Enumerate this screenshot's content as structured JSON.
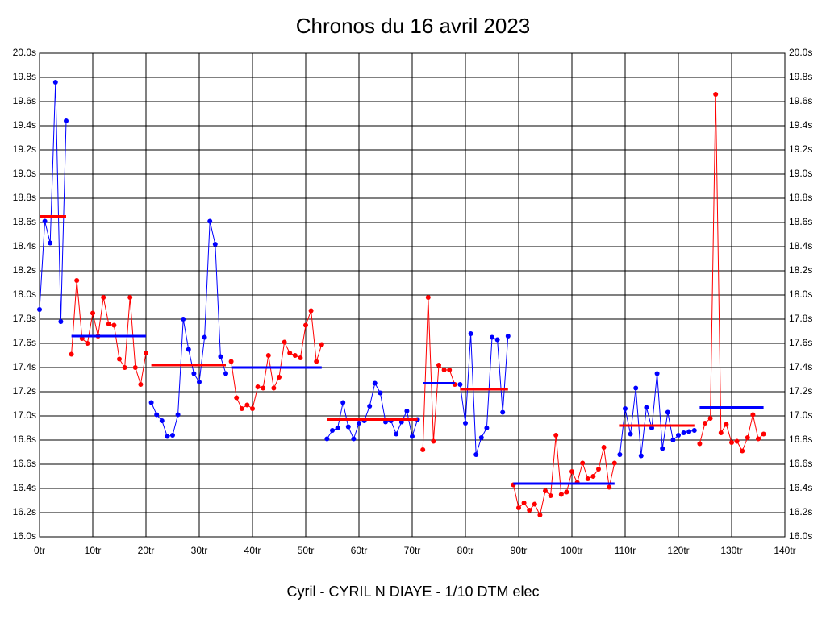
{
  "chart_data": {
    "type": "line",
    "title": "Chronos du 16 avril 2023",
    "subtitle": "Cyril - CYRIL N DIAYE - 1/10 DTM elec",
    "xlim": [
      0,
      140
    ],
    "ylim": [
      16,
      20
    ],
    "grid": true,
    "xticks": [
      {
        "value": 0,
        "label": "0tr"
      },
      {
        "value": 10,
        "label": "10tr"
      },
      {
        "value": 20,
        "label": "20tr"
      },
      {
        "value": 30,
        "label": "30tr"
      },
      {
        "value": 40,
        "label": "40tr"
      },
      {
        "value": 50,
        "label": "50tr"
      },
      {
        "value": 60,
        "label": "60tr"
      },
      {
        "value": 70,
        "label": "70tr"
      },
      {
        "value": 80,
        "label": "80tr"
      },
      {
        "value": 90,
        "label": "90tr"
      },
      {
        "value": 100,
        "label": "100tr"
      },
      {
        "value": 110,
        "label": "110tr"
      },
      {
        "value": 120,
        "label": "120tr"
      },
      {
        "value": 130,
        "label": "130tr"
      },
      {
        "value": 140,
        "label": "140tr"
      }
    ],
    "yticks": [
      {
        "value": 16.0,
        "label": "16.0s"
      },
      {
        "value": 16.2,
        "label": "16.2s"
      },
      {
        "value": 16.4,
        "label": "16.4s"
      },
      {
        "value": 16.6,
        "label": "16.6s"
      },
      {
        "value": 16.8,
        "label": "16.8s"
      },
      {
        "value": 17.0,
        "label": "17.0s"
      },
      {
        "value": 17.2,
        "label": "17.2s"
      },
      {
        "value": 17.4,
        "label": "17.4s"
      },
      {
        "value": 17.6,
        "label": "17.6s"
      },
      {
        "value": 17.8,
        "label": "17.8s"
      },
      {
        "value": 18.0,
        "label": "18.0s"
      },
      {
        "value": 18.2,
        "label": "18.2s"
      },
      {
        "value": 18.4,
        "label": "18.4s"
      },
      {
        "value": 18.6,
        "label": "18.6s"
      },
      {
        "value": 18.8,
        "label": "18.8s"
      },
      {
        "value": 19.0,
        "label": "19.0s"
      },
      {
        "value": 19.2,
        "label": "19.2s"
      },
      {
        "value": 19.4,
        "label": "19.4s"
      },
      {
        "value": 19.6,
        "label": "19.6s"
      },
      {
        "value": 19.8,
        "label": "19.8s"
      },
      {
        "value": 20.0,
        "label": "20.0s"
      }
    ],
    "series": [
      {
        "color": "#0000ff",
        "mean_color": "#ff0000",
        "mean": 18.65,
        "x": [
          0,
          1,
          2,
          3,
          4,
          5
        ],
        "values": [
          17.88,
          18.61,
          18.43,
          19.76,
          17.78,
          19.44
        ]
      },
      {
        "color": "#ff0000",
        "mean_color": "#0000ff",
        "mean": 17.66,
        "x": [
          6,
          7,
          8,
          9,
          10,
          11,
          12,
          13,
          14,
          15,
          16,
          17,
          18,
          19,
          20
        ],
        "values": [
          17.51,
          18.12,
          17.64,
          17.6,
          17.85,
          17.66,
          17.98,
          17.76,
          17.75,
          17.47,
          17.4,
          17.98,
          17.4,
          17.26,
          17.52
        ]
      },
      {
        "color": "#0000ff",
        "mean_color": "#ff0000",
        "mean": 17.42,
        "x": [
          21,
          22,
          23,
          24,
          25,
          26,
          27,
          28,
          29,
          30,
          31,
          32,
          33,
          34,
          35
        ],
        "values": [
          17.11,
          17.01,
          16.96,
          16.83,
          16.84,
          17.01,
          17.8,
          17.55,
          17.35,
          17.28,
          17.65,
          18.61,
          18.42,
          17.49,
          17.35
        ]
      },
      {
        "color": "#ff0000",
        "mean_color": "#0000ff",
        "mean": 17.4,
        "x": [
          36,
          37,
          38,
          39,
          40,
          41,
          42,
          43,
          44,
          45,
          46,
          47,
          48,
          49,
          50,
          51,
          52,
          53
        ],
        "values": [
          17.45,
          17.15,
          17.06,
          17.09,
          17.06,
          17.24,
          17.23,
          17.5,
          17.23,
          17.32,
          17.61,
          17.52,
          17.5,
          17.48,
          17.75,
          17.87,
          17.45,
          17.59
        ]
      },
      {
        "color": "#0000ff",
        "mean_color": "#ff0000",
        "mean": 16.97,
        "x": [
          54,
          55,
          56,
          57,
          58,
          59,
          60,
          61,
          62,
          63,
          64,
          65,
          66,
          67,
          68,
          69,
          70,
          71
        ],
        "values": [
          16.81,
          16.88,
          16.9,
          17.11,
          16.91,
          16.81,
          16.94,
          16.96,
          17.08,
          17.27,
          17.19,
          16.95,
          16.96,
          16.85,
          16.95,
          17.04,
          16.83,
          16.97
        ]
      },
      {
        "color": "#ff0000",
        "mean_color": "#0000ff",
        "mean": 17.27,
        "x": [
          72,
          73,
          74,
          75,
          76,
          77,
          78
        ],
        "values": [
          16.72,
          17.98,
          16.79,
          17.42,
          17.38,
          17.38,
          17.26
        ]
      },
      {
        "color": "#0000ff",
        "mean_color": "#ff0000",
        "mean": 17.22,
        "x": [
          79,
          80,
          81,
          82,
          83,
          84,
          85,
          86,
          87,
          88
        ],
        "values": [
          17.26,
          16.94,
          17.68,
          16.68,
          16.82,
          16.9,
          17.65,
          17.63,
          17.03,
          17.66
        ]
      },
      {
        "color": "#ff0000",
        "mean_color": "#0000ff",
        "mean": 16.44,
        "x": [
          89,
          90,
          91,
          92,
          93,
          94,
          95,
          96,
          97,
          98,
          99,
          100,
          101,
          102,
          103,
          104,
          105,
          106,
          107,
          108
        ],
        "values": [
          16.43,
          16.24,
          16.28,
          16.22,
          16.27,
          16.18,
          16.38,
          16.34,
          16.84,
          16.35,
          16.37,
          16.54,
          16.45,
          16.61,
          16.48,
          16.5,
          16.56,
          16.74,
          16.41,
          16.61
        ]
      },
      {
        "color": "#0000ff",
        "mean_color": "#ff0000",
        "mean": 16.92,
        "x": [
          109,
          110,
          111,
          112,
          113,
          114,
          115,
          116,
          117,
          118,
          119,
          120,
          121,
          122,
          123
        ],
        "values": [
          16.68,
          17.06,
          16.85,
          17.23,
          16.67,
          17.07,
          16.9,
          17.35,
          16.73,
          17.03,
          16.8,
          16.84,
          16.86,
          16.87,
          16.88
        ]
      },
      {
        "color": "#ff0000",
        "mean_color": "#0000ff",
        "mean": 17.07,
        "x": [
          124,
          125,
          126,
          127,
          128,
          129,
          130,
          131,
          132,
          133,
          134,
          135,
          136
        ],
        "values": [
          16.77,
          16.94,
          16.98,
          19.66,
          16.86,
          16.93,
          16.78,
          16.79,
          16.71,
          16.82,
          17.01,
          16.81,
          16.85
        ]
      }
    ]
  }
}
